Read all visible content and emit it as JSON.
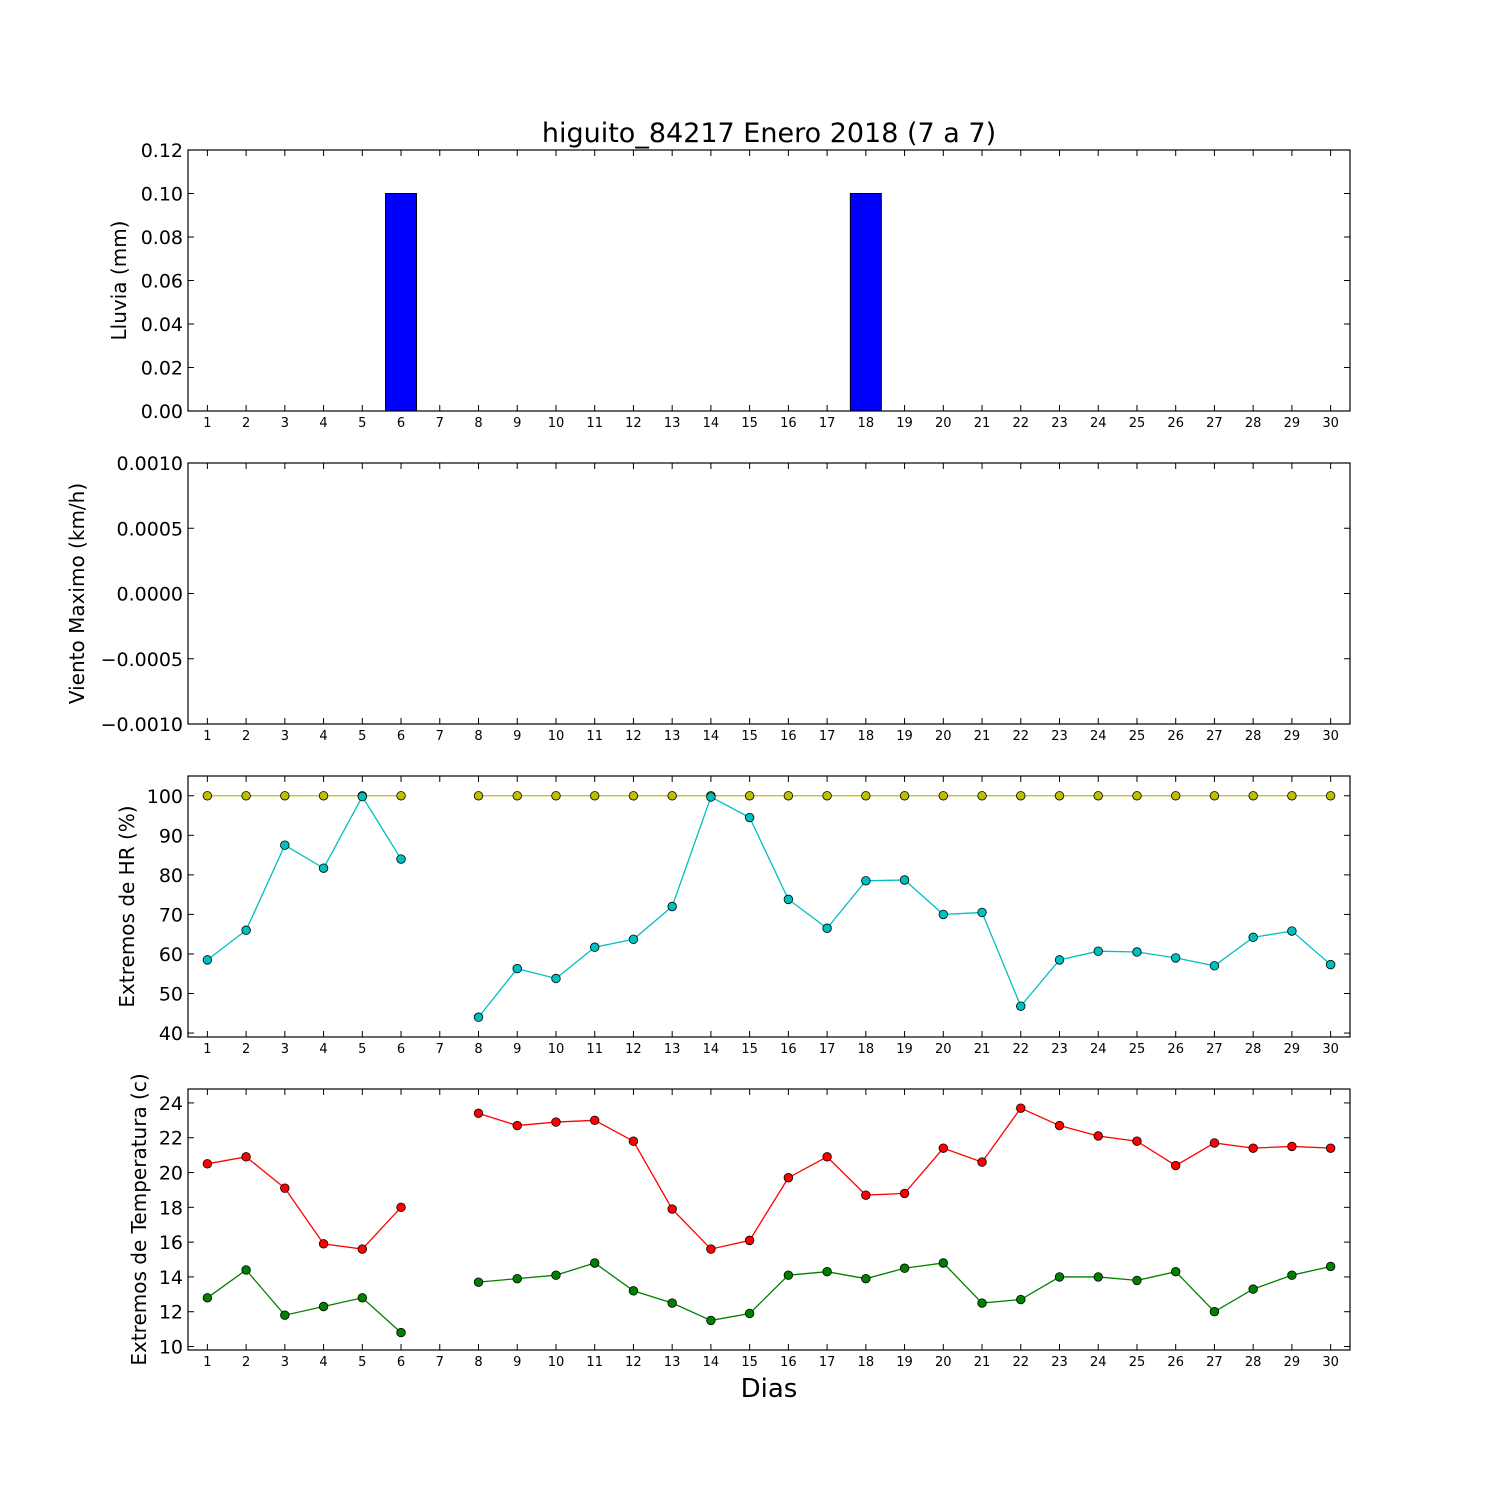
{
  "title": "higuito_84217 Enero 2018  (7 a 7)",
  "xlabel": "Dias",
  "chart_data": [
    {
      "type": "bar",
      "ylabel": "Lluvia (mm)",
      "ylim": [
        0,
        0.12
      ],
      "yticks": [
        "0.00",
        "0.02",
        "0.04",
        "0.06",
        "0.08",
        "0.10",
        "0.12"
      ],
      "xticks": [
        1,
        2,
        3,
        4,
        5,
        6,
        7,
        8,
        9,
        10,
        11,
        12,
        13,
        14,
        15,
        16,
        17,
        18,
        19,
        20,
        21,
        22,
        23,
        24,
        25,
        26,
        27,
        28,
        29,
        30
      ],
      "x": [
        1,
        2,
        3,
        4,
        5,
        6,
        7,
        8,
        9,
        10,
        11,
        12,
        13,
        14,
        15,
        16,
        17,
        18,
        19,
        20,
        21,
        22,
        23,
        24,
        25,
        26,
        27,
        28,
        29,
        30
      ],
      "values": [
        0,
        0,
        0,
        0,
        0,
        0.1,
        null,
        0,
        0,
        0,
        0,
        0,
        0,
        0,
        0,
        0,
        0,
        0.1,
        0,
        0,
        0,
        0,
        0,
        0,
        0,
        0,
        0,
        0,
        0,
        0
      ],
      "colors": {
        "bar": "#0000ff"
      },
      "grid": false
    },
    {
      "type": "line",
      "ylabel": "Viento Maximo (km/h)",
      "ylim": [
        -0.001,
        0.001
      ],
      "yticks": [
        "−0.0010",
        "−0.0005",
        "0.0000",
        "0.0005",
        "0.0010"
      ],
      "xticks": [
        1,
        2,
        3,
        4,
        5,
        6,
        7,
        8,
        9,
        10,
        11,
        12,
        13,
        14,
        15,
        16,
        17,
        18,
        19,
        20,
        21,
        22,
        23,
        24,
        25,
        26,
        27,
        28,
        29,
        30
      ],
      "series": [],
      "grid": false
    },
    {
      "type": "line",
      "ylabel": "Extremos de HR (%)",
      "ylim": [
        39,
        105
      ],
      "yticks": [
        "40",
        "50",
        "60",
        "70",
        "80",
        "90",
        "100"
      ],
      "xticks": [
        1,
        2,
        3,
        4,
        5,
        6,
        7,
        8,
        9,
        10,
        11,
        12,
        13,
        14,
        15,
        16,
        17,
        18,
        19,
        20,
        21,
        22,
        23,
        24,
        25,
        26,
        27,
        28,
        29,
        30
      ],
      "x": [
        1,
        2,
        3,
        4,
        5,
        6,
        7,
        8,
        9,
        10,
        11,
        12,
        13,
        14,
        15,
        16,
        17,
        18,
        19,
        20,
        21,
        22,
        23,
        24,
        25,
        26,
        27,
        28,
        29,
        30
      ],
      "series": [
        {
          "color": "#bfbf00",
          "values": [
            100,
            100,
            100,
            100,
            100,
            100,
            null,
            100,
            100,
            100,
            100,
            100,
            100,
            100,
            100,
            100,
            100,
            100,
            100,
            100,
            100,
            100,
            100,
            100,
            100,
            100,
            100,
            100,
            100,
            100
          ]
        },
        {
          "color": "#00bfbf",
          "values": [
            58.5,
            66,
            87.5,
            81.7,
            99.8,
            84,
            null,
            44,
            56.3,
            53.8,
            61.7,
            63.7,
            72,
            99.7,
            94.5,
            73.8,
            66.5,
            78.5,
            78.7,
            70,
            70.5,
            46.8,
            58.5,
            60.7,
            60.5,
            59,
            57,
            64.2,
            65.8,
            57.3
          ]
        }
      ],
      "grid": false
    },
    {
      "type": "line",
      "ylabel": "Extremos de Temperatura (c)",
      "ylim": [
        9.8,
        24.8
      ],
      "yticks": [
        "10",
        "12",
        "14",
        "16",
        "18",
        "20",
        "22",
        "24"
      ],
      "xticks": [
        1,
        2,
        3,
        4,
        5,
        6,
        7,
        8,
        9,
        10,
        11,
        12,
        13,
        14,
        15,
        16,
        17,
        18,
        19,
        20,
        21,
        22,
        23,
        24,
        25,
        26,
        27,
        28,
        29,
        30
      ],
      "x": [
        1,
        2,
        3,
        4,
        5,
        6,
        7,
        8,
        9,
        10,
        11,
        12,
        13,
        14,
        15,
        16,
        17,
        18,
        19,
        20,
        21,
        22,
        23,
        24,
        25,
        26,
        27,
        28,
        29,
        30
      ],
      "series": [
        {
          "color": "#ff0000",
          "values": [
            20.5,
            20.9,
            19.1,
            15.9,
            15.6,
            18,
            null,
            23.4,
            22.7,
            22.9,
            23,
            21.8,
            17.9,
            15.6,
            16.1,
            19.7,
            20.9,
            18.7,
            18.8,
            21.4,
            20.6,
            23.7,
            22.7,
            22.1,
            21.8,
            20.4,
            21.7,
            21.4,
            21.5,
            21.4
          ]
        },
        {
          "color": "#008000",
          "values": [
            12.8,
            14.4,
            11.8,
            12.3,
            12.8,
            10.8,
            null,
            13.7,
            13.9,
            14.1,
            14.8,
            13.2,
            12.5,
            11.5,
            11.9,
            14.1,
            14.3,
            13.9,
            14.5,
            14.8,
            12.5,
            12.7,
            14,
            14,
            13.8,
            14.3,
            12,
            13.3,
            14.1,
            14.6
          ]
        }
      ],
      "grid": false
    }
  ]
}
